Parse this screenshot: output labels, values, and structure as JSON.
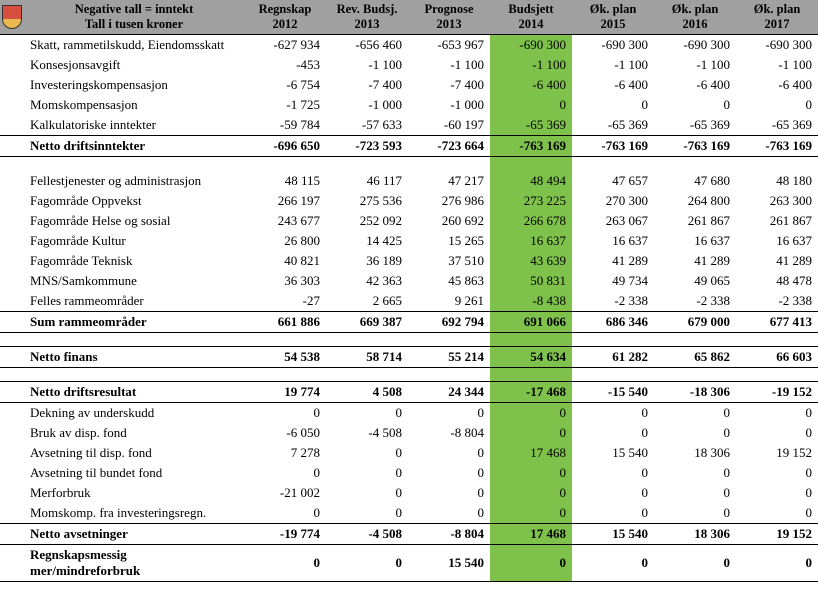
{
  "header": {
    "note1": "Negative tall = inntekt",
    "note2": "Tall i tusen kroner",
    "cols": [
      {
        "l1": "Regnskap",
        "l2": "2012"
      },
      {
        "l1": "Rev. Budsj.",
        "l2": "2013"
      },
      {
        "l1": "Prognose",
        "l2": "2013"
      },
      {
        "l1": "Budsjett 2014",
        "l2": ""
      },
      {
        "l1": "Øk. plan",
        "l2": "2015"
      },
      {
        "l1": "Øk. plan",
        "l2": "2016"
      },
      {
        "l1": "Øk. plan 2017",
        "l2": ""
      }
    ]
  },
  "highlight_col": 3,
  "colors": {
    "header_bg": "#a0a0a0",
    "highlight_bg": "#7fc24b"
  },
  "rows": [
    {
      "type": "data",
      "label": "Skatt, rammetilskudd, Eiendomsskatt",
      "v": [
        "-627 934",
        "-656 460",
        "-653 967",
        "-690 300",
        "-690 300",
        "-690 300",
        "-690 300"
      ]
    },
    {
      "type": "data",
      "label": "Konsesjonsavgift",
      "v": [
        "-453",
        "-1 100",
        "-1 100",
        "-1 100",
        "-1 100",
        "-1 100",
        "-1 100"
      ]
    },
    {
      "type": "data",
      "label": "Investeringskompensasjon",
      "v": [
        "-6 754",
        "-7 400",
        "-7 400",
        "-6 400",
        "-6 400",
        "-6 400",
        "-6 400"
      ]
    },
    {
      "type": "data",
      "label": "Momskompensasjon",
      "v": [
        "-1 725",
        "-1 000",
        "-1 000",
        "0",
        "0",
        "0",
        "0"
      ]
    },
    {
      "type": "data",
      "label": "Kalkulatoriske inntekter",
      "v": [
        "-59 784",
        "-57 633",
        "-60 197",
        "-65 369",
        "-65 369",
        "-65 369",
        "-65 369"
      ]
    },
    {
      "type": "sum",
      "label": "Netto driftsinntekter",
      "v": [
        "-696 650",
        "-723 593",
        "-723 664",
        "-763 169",
        "-763 169",
        "-763 169",
        "-763 169"
      ]
    },
    {
      "type": "spacer"
    },
    {
      "type": "data",
      "label": "Fellestjenester og administrasjon",
      "v": [
        "48 115",
        "46 117",
        "47 217",
        "48 494",
        "47 657",
        "47 680",
        "48 180"
      ]
    },
    {
      "type": "data",
      "label": "Fagområde Oppvekst",
      "v": [
        "266 197",
        "275 536",
        "276 986",
        "273 225",
        "270 300",
        "264 800",
        "263 300"
      ]
    },
    {
      "type": "data",
      "label": "Fagområde Helse og sosial",
      "v": [
        "243 677",
        "252 092",
        "260 692",
        "266 678",
        "263 067",
        "261 867",
        "261 867"
      ]
    },
    {
      "type": "data",
      "label": "Fagområde Kultur",
      "v": [
        "26 800",
        "14 425",
        "15 265",
        "16 637",
        "16 637",
        "16 637",
        "16 637"
      ]
    },
    {
      "type": "data",
      "label": "Fagområde Teknisk",
      "v": [
        "40 821",
        "36 189",
        "37 510",
        "43 639",
        "41 289",
        "41 289",
        "41 289"
      ]
    },
    {
      "type": "data",
      "label": "MNS/Samkommune",
      "v": [
        "36 303",
        "42 363",
        "45 863",
        "50 831",
        "49 734",
        "49 065",
        "48 478"
      ]
    },
    {
      "type": "data",
      "label": "Felles rammeområder",
      "v": [
        "-27",
        "2 665",
        "9 261",
        "-8 438",
        "-2 338",
        "-2 338",
        "-2 338"
      ]
    },
    {
      "type": "sum",
      "label": "Sum rammeområder",
      "v": [
        "661 886",
        "669 387",
        "692 794",
        "691 066",
        "686 346",
        "679 000",
        "677 413"
      ]
    },
    {
      "type": "spacer"
    },
    {
      "type": "sum",
      "label": "Netto finans",
      "v": [
        "54 538",
        "58 714",
        "55 214",
        "54 634",
        "61 282",
        "65 862",
        "66 603"
      ]
    },
    {
      "type": "spacer"
    },
    {
      "type": "sum",
      "label": "Netto driftsresultat",
      "v": [
        "19 774",
        "4 508",
        "24 344",
        "-17 468",
        "-15 540",
        "-18 306",
        "-19 152"
      ]
    },
    {
      "type": "data",
      "label": "Dekning av underskudd",
      "v": [
        "0",
        "0",
        "0",
        "0",
        "0",
        "0",
        "0"
      ]
    },
    {
      "type": "data",
      "label": "Bruk av disp. fond",
      "v": [
        "-6 050",
        "-4 508",
        "-8 804",
        "0",
        "0",
        "0",
        "0"
      ]
    },
    {
      "type": "data",
      "label": "Avsetning til disp. fond",
      "v": [
        "7 278",
        "0",
        "0",
        "17 468",
        "15 540",
        "18 306",
        "19 152"
      ]
    },
    {
      "type": "data",
      "label": "Avsetning til bundet fond",
      "v": [
        "0",
        "0",
        "0",
        "0",
        "0",
        "0",
        "0"
      ]
    },
    {
      "type": "data",
      "label": "Merforbruk",
      "v": [
        "-21 002",
        "0",
        "0",
        "0",
        "0",
        "0",
        "0"
      ]
    },
    {
      "type": "data",
      "label": "Momskomp. fra investeringsregn.",
      "v": [
        "0",
        "0",
        "0",
        "0",
        "0",
        "0",
        "0"
      ]
    },
    {
      "type": "sum",
      "label": "Netto avsetninger",
      "v": [
        "-19 774",
        "-4 508",
        "-8 804",
        "17 468",
        "15 540",
        "18 306",
        "19 152"
      ]
    },
    {
      "type": "sum",
      "label": "Regnskapsmessig mer/mindreforbruk",
      "v": [
        "0",
        "0",
        "15 540",
        "0",
        "0",
        "0",
        "0"
      ]
    }
  ]
}
